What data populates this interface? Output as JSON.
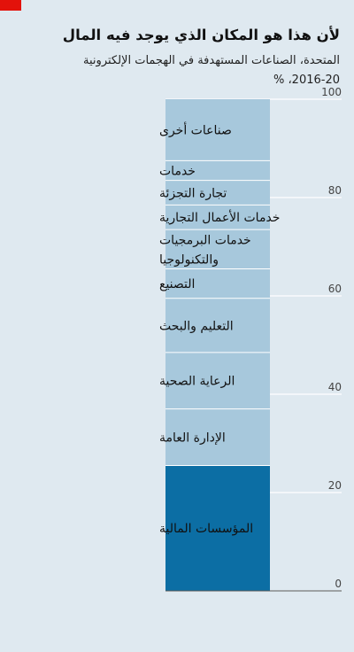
{
  "title": "لأن هذا هو المكان الذي يوجد فيه المال",
  "subtitle_lines": [
    "المتحدة، الصناعات المستهدفة في الهجمات الإلكترونية",
    "2016-20، %"
  ],
  "colors": {
    "background": "#dfe9f0",
    "segment": "#a7c8dc",
    "highlight": "#0c6ea4",
    "gridline": "#ffffff",
    "brand": "#e3120b"
  },
  "chart_data": {
    "type": "bar",
    "stacked": true,
    "title": "لأن هذا هو المكان الذي يوجد فيه المال",
    "ylim": [
      0,
      100
    ],
    "yticks": [
      0,
      20,
      40,
      60,
      80,
      100
    ],
    "segments": [
      {
        "label": [
          "المؤسسات المالية"
        ],
        "value": 25.5,
        "highlight": true
      },
      {
        "label": [
          "الإدارة العامة"
        ],
        "value": 11.5,
        "highlight": false
      },
      {
        "label": [
          "الرعاية الصحية"
        ],
        "value": 11.5,
        "highlight": false
      },
      {
        "label": [
          "التعليم والبحث"
        ],
        "value": 11,
        "highlight": false
      },
      {
        "label": [
          "التصنيع"
        ],
        "value": 6,
        "highlight": false
      },
      {
        "label": [
          "خدمات البرمجيات",
          "والتكنولوجيا"
        ],
        "value": 8,
        "highlight": false
      },
      {
        "label": [
          "خدمات الأعمال التجارية"
        ],
        "value": 5,
        "highlight": false
      },
      {
        "label": [
          "تجارة التجزئة"
        ],
        "value": 5,
        "highlight": false
      },
      {
        "label": [
          "خدمات"
        ],
        "value": 4,
        "highlight": false
      },
      {
        "label": [
          "صناعات أخرى"
        ],
        "value": 12.5,
        "highlight": false
      }
    ]
  }
}
